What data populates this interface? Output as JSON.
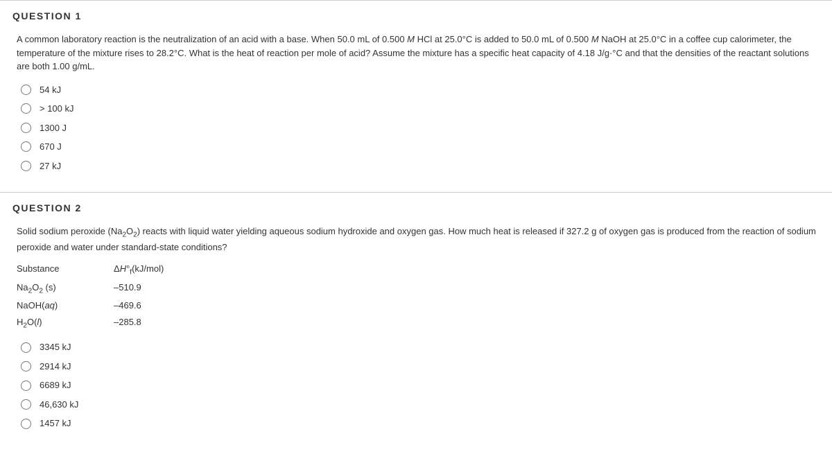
{
  "questions": [
    {
      "heading": "QUESTION 1",
      "prompt_html": "A common laboratory reaction is the neutralization of an acid with a base. When 50.0 mL of 0.500 <span class='italic'>M</span> HCl at 25.0°C is added to 50.0 mL of 0.500 <span class='italic'>M</span> NaOH at 25.0°C in a coffee cup calorimeter, the temperature of the mixture rises to 28.2°C. What is the heat of reaction per mole of acid? Assume the mixture has a specific heat capacity of 4.18 J/g·°C and that the densities of the reactant solutions are both 1.00 g/mL.",
      "options": [
        "54 kJ",
        "> 100 kJ",
        "1300 J",
        "670 J",
        "27 kJ"
      ]
    },
    {
      "heading": "QUESTION 2",
      "prompt_html": "Solid sodium peroxide (Na<sub>2</sub>O<sub>2</sub>) reacts with liquid water yielding aqueous sodium hydroxide and oxygen gas. How much heat is released if 327.2 g of oxygen gas is produced from the reaction of sodium peroxide and water under standard-state conditions?",
      "table": {
        "header": [
          "Substance",
          "Δ<i>H</i>°<sub>f</sub>(kJ/mol)"
        ],
        "rows": [
          [
            "Na<sub>2</sub>O<sub>2</sub> (s)",
            "–510.9"
          ],
          [
            "NaOH(<i>aq</i>)",
            "–469.6"
          ],
          [
            "H<sub>2</sub>O(<i>l</i>)",
            "–285.8"
          ]
        ]
      },
      "options": [
        "3345 kJ",
        "2914 kJ",
        "6689 kJ",
        "46,630 kJ",
        "1457 kJ"
      ]
    }
  ],
  "style": {
    "border_color": "#ccc",
    "text_color": "#333",
    "radio_border": "#777",
    "heading_letter_spacing": "1.5px"
  }
}
